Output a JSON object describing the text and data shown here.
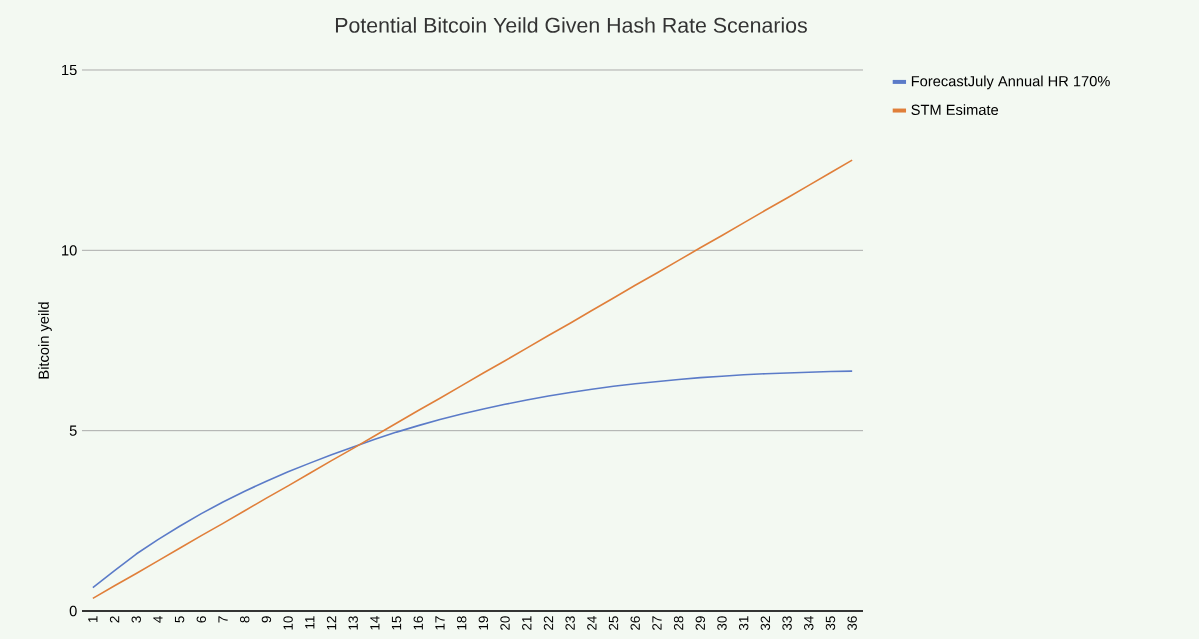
{
  "chart_data": {
    "type": "line",
    "title": "Potential Bitcoin Yeild Given Hash Rate Scenarios",
    "ylabel": "Bitcoin yeild",
    "categories": [
      "1",
      "2",
      "3",
      "4",
      "5",
      "6",
      "7",
      "8",
      "9",
      "10",
      "11",
      "12",
      "13",
      "14",
      "15",
      "16",
      "17",
      "18",
      "19",
      "20",
      "21",
      "22",
      "23",
      "24",
      "25",
      "26",
      "27",
      "28",
      "29",
      "30",
      "31",
      "32",
      "33",
      "34",
      "35",
      "36"
    ],
    "series": [
      {
        "name": "ForecastJuly Annual HR 170%",
        "color": "#5b7bc8",
        "values": [
          0.65,
          1.12,
          1.58,
          1.98,
          2.35,
          2.7,
          3.02,
          3.32,
          3.6,
          3.86,
          4.1,
          4.33,
          4.55,
          4.76,
          4.96,
          5.14,
          5.31,
          5.46,
          5.6,
          5.73,
          5.85,
          5.96,
          6.06,
          6.15,
          6.23,
          6.3,
          6.36,
          6.42,
          6.47,
          6.51,
          6.55,
          6.58,
          6.6,
          6.62,
          6.64,
          6.65
        ]
      },
      {
        "name": "STM Esimate",
        "color": "#e07f3a",
        "values": [
          0.35,
          0.7,
          1.04,
          1.39,
          1.74,
          2.09,
          2.43,
          2.78,
          3.13,
          3.47,
          3.82,
          4.17,
          4.51,
          4.86,
          5.21,
          5.56,
          5.9,
          6.25,
          6.6,
          6.94,
          7.29,
          7.64,
          7.98,
          8.33,
          8.68,
          9.03,
          9.37,
          9.72,
          10.07,
          10.41,
          10.76,
          11.11,
          11.45,
          11.8,
          12.15,
          12.5
        ]
      }
    ],
    "ylim": [
      0,
      15
    ],
    "yticks": [
      0,
      5,
      10,
      15
    ],
    "grid": "y",
    "legend": "top right",
    "marker": "none",
    "line_style": "solid"
  }
}
